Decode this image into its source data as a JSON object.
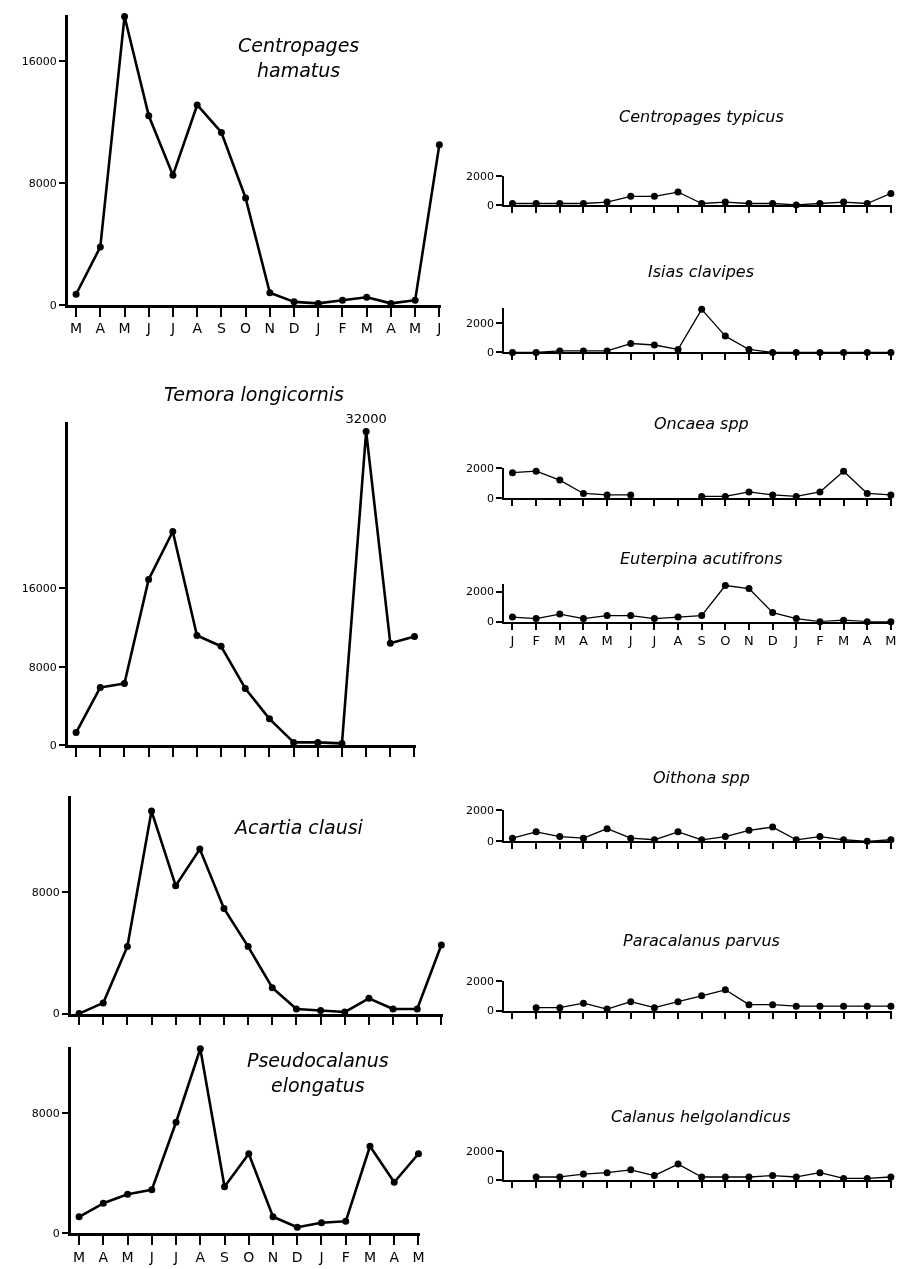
{
  "chart_data": [
    {
      "type": "line",
      "title": "Centropages\nhamatus",
      "categories": [
        "M",
        "A",
        "M",
        "J",
        "J",
        "A",
        "S",
        "O",
        "N",
        "D",
        "J",
        "F",
        "M",
        "A",
        "M",
        "J"
      ],
      "values": [
        700,
        3800,
        18900,
        12400,
        8500,
        13100,
        11300,
        7000,
        800,
        200,
        100,
        300,
        500,
        100,
        300,
        10500
      ],
      "color": "#000000",
      "marker": "circle",
      "line_style": "solid",
      "ylim": [
        0,
        19000
      ],
      "yticks": [
        0,
        8000,
        16000
      ]
    },
    {
      "type": "line",
      "title": "Temora longicornis",
      "categories": [
        null,
        null,
        null,
        null,
        null,
        null,
        null,
        null,
        null,
        null,
        null,
        null,
        null,
        null,
        null
      ],
      "values": [
        1300,
        5900,
        6300,
        16900,
        21800,
        11200,
        10100,
        5800,
        2700,
        300,
        300,
        200,
        32000,
        10400,
        11100
      ],
      "value_labels": [
        null,
        null,
        null,
        null,
        null,
        null,
        null,
        null,
        null,
        null,
        null,
        null,
        "32000",
        null,
        null
      ],
      "color": "#000000",
      "marker": "circle",
      "line_style": "solid",
      "ylim": [
        0,
        33000
      ],
      "yticks": [
        0,
        8000,
        16000
      ],
      "tick_labels": "y"
    },
    {
      "type": "line",
      "title": "Acartia clausi",
      "categories": [
        null,
        null,
        null,
        null,
        null,
        null,
        null,
        null,
        null,
        null,
        null,
        null,
        null,
        null,
        null,
        null
      ],
      "values": [
        0,
        700,
        4400,
        13300,
        8400,
        10800,
        6900,
        4400,
        1700,
        300,
        200,
        100,
        1000,
        300,
        300,
        4500
      ],
      "color": "#000000",
      "marker": "circle",
      "line_style": "solid",
      "ylim": [
        0,
        14300
      ],
      "yticks": [
        0,
        8000
      ],
      "tick_labels": "y"
    },
    {
      "type": "line",
      "title": "Pseudocalanus\nelongatus",
      "categories": [
        "M",
        "A",
        "M",
        "J",
        "J",
        "A",
        "S",
        "O",
        "N",
        "D",
        "J",
        "F",
        "M",
        "A",
        "M"
      ],
      "values": [
        1100,
        2000,
        2600,
        2900,
        7400,
        12300,
        3100,
        5300,
        1100,
        400,
        700,
        800,
        5800,
        3400,
        5300
      ],
      "color": "#000000",
      "marker": "circle",
      "line_style": "solid",
      "ylim": [
        0,
        12400
      ],
      "yticks": [
        0,
        8000
      ]
    },
    {
      "type": "line",
      "title": "Centropages typicus",
      "categories": [
        null,
        null,
        null,
        null,
        null,
        null,
        null,
        null,
        null,
        null,
        null,
        null,
        null,
        null,
        null,
        null,
        null
      ],
      "values": [
        100,
        100,
        100,
        100,
        200,
        600,
        600,
        900,
        100,
        200,
        100,
        100,
        0,
        100,
        200,
        100,
        800
      ],
      "color": "#000000",
      "marker": "circle",
      "line_style": "solid",
      "ylim": [
        0,
        2000
      ],
      "yticks": [
        0,
        2000
      ],
      "tick_labels": "y"
    },
    {
      "type": "line",
      "title": "Isias clavipes",
      "categories": [
        null,
        null,
        null,
        null,
        null,
        null,
        null,
        null,
        null,
        null,
        null,
        null,
        null,
        null,
        null,
        null,
        null
      ],
      "values": [
        0,
        0,
        100,
        100,
        100,
        600,
        500,
        200,
        2900,
        1100,
        200,
        0,
        0,
        0,
        0,
        0,
        0
      ],
      "color": "#000000",
      "marker": "circle",
      "line_style": "solid",
      "ylim": [
        0,
        3000
      ],
      "yticks": [
        0,
        2000
      ],
      "tick_labels": "y"
    },
    {
      "type": "line",
      "title": "Oncaea spp",
      "categories": [
        null,
        null,
        null,
        null,
        null,
        null,
        null,
        null,
        null,
        null,
        null,
        null,
        null,
        null,
        null,
        null,
        null
      ],
      "values": [
        1700,
        1800,
        1200,
        300,
        200,
        200,
        null,
        null,
        100,
        100,
        400,
        200,
        100,
        400,
        1800,
        300,
        200
      ],
      "color": "#000000",
      "marker": "circle",
      "line_style": "solid",
      "ylim": [
        0,
        2000
      ],
      "yticks": [
        0,
        2000
      ],
      "tick_labels": "y"
    },
    {
      "type": "line",
      "title": "Euterpina acutifrons",
      "categories": [
        "J",
        "F",
        "M",
        "A",
        "M",
        "J",
        "J",
        "A",
        "S",
        "O",
        "N",
        "D",
        "J",
        "F",
        "M",
        "A",
        "M"
      ],
      "values": [
        300,
        200,
        500,
        200,
        400,
        400,
        200,
        300,
        400,
        2400,
        2200,
        600,
        200,
        0,
        100,
        0,
        0
      ],
      "color": "#000000",
      "marker": "circle",
      "line_style": "solid",
      "ylim": [
        0,
        2500
      ],
      "yticks": [
        0,
        2000
      ]
    },
    {
      "type": "line",
      "title": "Oithona spp",
      "categories": [
        null,
        null,
        null,
        null,
        null,
        null,
        null,
        null,
        null,
        null,
        null,
        null,
        null,
        null,
        null,
        null,
        null
      ],
      "values": [
        200,
        600,
        300,
        200,
        800,
        200,
        100,
        600,
        100,
        300,
        700,
        900,
        100,
        300,
        100,
        0,
        100
      ],
      "color": "#000000",
      "marker": "circle",
      "line_style": "solid",
      "ylim": [
        0,
        2000
      ],
      "yticks": [
        0,
        2000
      ],
      "tick_labels": "y"
    },
    {
      "type": "line",
      "title": "Paracalanus parvus",
      "categories": [
        null,
        null,
        null,
        null,
        null,
        null,
        null,
        null,
        null,
        null,
        null,
        null,
        null,
        null,
        null,
        null,
        null
      ],
      "values": [
        null,
        200,
        200,
        500,
        100,
        600,
        200,
        600,
        1000,
        1400,
        400,
        400,
        300,
        300,
        300,
        300,
        300
      ],
      "color": "#000000",
      "marker": "circle",
      "line_style": "solid",
      "ylim": [
        0,
        2000
      ],
      "yticks": [
        0,
        2000
      ],
      "tick_labels": "y"
    },
    {
      "type": "line",
      "title": "Calanus helgolandicus",
      "categories": [
        null,
        null,
        null,
        null,
        null,
        null,
        null,
        null,
        null,
        null,
        null,
        null,
        null,
        null,
        null,
        null,
        null
      ],
      "values": [
        null,
        200,
        200,
        400,
        500,
        700,
        300,
        1100,
        200,
        200,
        200,
        300,
        200,
        500,
        100,
        100,
        200
      ],
      "color": "#000000",
      "marker": "circle",
      "line_style": "solid",
      "ylim": [
        0,
        2000
      ],
      "yticks": [
        0,
        2000
      ],
      "tick_labels": "y"
    }
  ]
}
